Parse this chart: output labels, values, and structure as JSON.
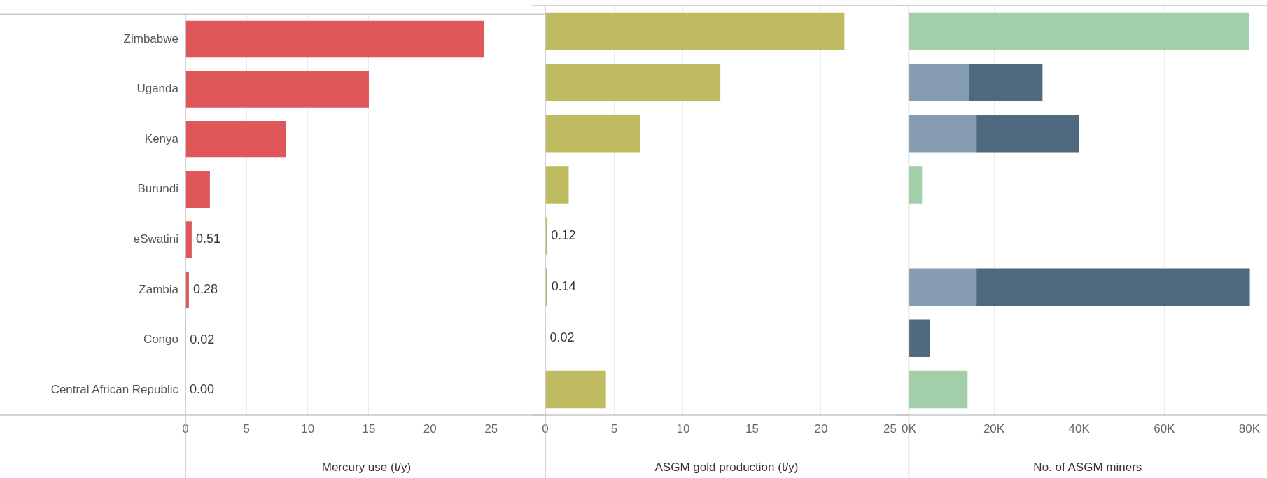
{
  "chart_data": [
    {
      "type": "bar",
      "orientation": "horizontal",
      "xlabel": "Mercury use (t/y)",
      "categories": [
        "Zimbabwe",
        "Uganda",
        "Kenya",
        "Burundi",
        "eSwatini",
        "Zambia",
        "Congo",
        "Central African Republic"
      ],
      "values": [
        24.4,
        15.0,
        8.2,
        2.0,
        0.51,
        0.28,
        0.02,
        0.0
      ],
      "value_labels": [
        null,
        null,
        null,
        null,
        "0.51",
        "0.28",
        "0.02",
        "0.00"
      ],
      "color": "#e05759",
      "xlim": [
        0,
        29.6
      ],
      "xticks": [
        0,
        5,
        10,
        15,
        20,
        25
      ],
      "grid": "x"
    },
    {
      "type": "bar",
      "orientation": "horizontal",
      "xlabel": "ASGM gold production (t/y)",
      "categories": [
        null,
        null,
        null,
        null,
        null,
        null,
        null,
        null
      ],
      "values": [
        21.7,
        12.7,
        6.9,
        1.7,
        0.12,
        0.14,
        0.02,
        4.4
      ],
      "value_labels": [
        null,
        null,
        null,
        null,
        "0.12",
        "0.14",
        "0.02",
        null
      ],
      "color": "#bfbb60",
      "xlim": [
        0,
        26.3
      ],
      "xticks": [
        0,
        5,
        10,
        15,
        20,
        25
      ],
      "grid": "x",
      "tick_labels": "x"
    },
    {
      "type": "bar",
      "orientation": "horizontal",
      "stacked": true,
      "xlabel": "No. of ASGM miners",
      "categories": [
        null,
        null,
        null,
        null,
        null,
        null,
        null,
        null
      ],
      "series": [
        {
          "color": "#a2ceaa",
          "values": [
            80000,
            null,
            null,
            3100,
            100,
            null,
            null,
            13800
          ]
        },
        {
          "color": "#869db1",
          "values": [
            null,
            14200,
            15900,
            null,
            null,
            15900,
            null,
            null
          ]
        },
        {
          "color": "#4f6980",
          "values": [
            null,
            17200,
            24100,
            null,
            null,
            64200,
            5000,
            null
          ]
        }
      ],
      "xlim": [
        0,
        84000
      ],
      "xticks": [
        {
          "value": 0,
          "label": "0K"
        },
        {
          "value": 20000,
          "label": "20K"
        },
        {
          "value": 40000,
          "label": "40K"
        },
        {
          "value": 60000,
          "label": "60K"
        },
        {
          "value": 80000,
          "label": "80K"
        }
      ],
      "grid": "x",
      "tick_labels": "x"
    }
  ]
}
